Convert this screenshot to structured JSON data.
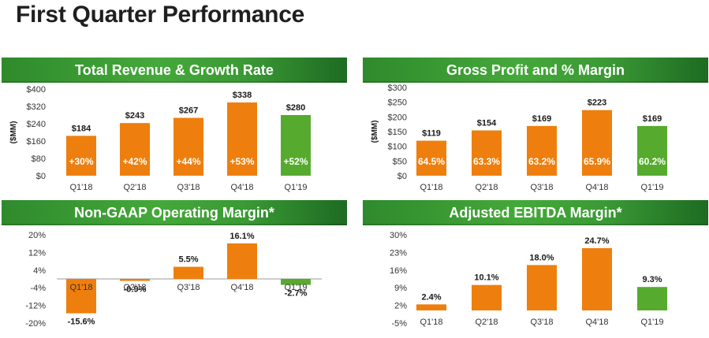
{
  "page_title": "First Quarter Performance",
  "colors": {
    "orange": "#ee7f0e",
    "green": "#56ab2f",
    "header": "#3f9e36"
  },
  "chart_data": [
    {
      "type": "bar",
      "title": "Total Revenue & Growth Rate",
      "ylabel": "($MM)",
      "categories": [
        "Q1'18",
        "Q2'18",
        "Q3'18",
        "Q4'18",
        "Q1'19"
      ],
      "values": [
        184,
        243,
        267,
        338,
        280
      ],
      "value_labels": [
        "$184",
        "$243",
        "$267",
        "$338",
        "$280"
      ],
      "inbar_labels": [
        "+30%",
        "+42%",
        "+44%",
        "+53%",
        "+52%"
      ],
      "yticks": [
        "$0",
        "$80",
        "$160",
        "$240",
        "$320",
        "$400"
      ],
      "ylim": [
        0,
        400
      ],
      "highlight_last": true
    },
    {
      "type": "bar",
      "title": "Gross Profit and % Margin",
      "ylabel": "($MM)",
      "categories": [
        "Q1'18",
        "Q2'18",
        "Q3'18",
        "Q4'18",
        "Q1'19"
      ],
      "values": [
        119,
        154,
        169,
        223,
        169
      ],
      "value_labels": [
        "$119",
        "$154",
        "$169",
        "$223",
        "$169"
      ],
      "inbar_labels": [
        "64.5%",
        "63.3%",
        "63.2%",
        "65.9%",
        "60.2%"
      ],
      "yticks": [
        "$0",
        "$50",
        "$100",
        "$150",
        "$200",
        "$250",
        "$300"
      ],
      "ylim": [
        0,
        300
      ],
      "highlight_last": true
    },
    {
      "type": "bar",
      "title": "Non-GAAP Operating Margin*",
      "ylabel": "",
      "categories": [
        "Q1'18",
        "Q2'18",
        "Q3'18",
        "Q4'18",
        "Q1'19"
      ],
      "values": [
        -15.6,
        -0.9,
        5.5,
        16.1,
        -2.7
      ],
      "value_labels": [
        "-15.6%",
        "-0.9%",
        "5.5%",
        "16.1%",
        "-2.7%"
      ],
      "inbar_labels": [],
      "yticks": [
        "-20%",
        "-12%",
        "-4%",
        "4%",
        "12%",
        "20%"
      ],
      "ylim": [
        -20,
        20
      ],
      "highlight_last": true
    },
    {
      "type": "bar",
      "title": "Adjusted EBITDA Margin*",
      "ylabel": "",
      "categories": [
        "Q1'18",
        "Q2'18",
        "Q3'18",
        "Q4'18",
        "Q1'19"
      ],
      "values": [
        2.4,
        10.1,
        18.0,
        24.7,
        9.3
      ],
      "value_labels": [
        "2.4%",
        "10.1%",
        "18.0%",
        "24.7%",
        "9.3%"
      ],
      "inbar_labels": [],
      "yticks": [
        "-5%",
        "2%",
        "9%",
        "16%",
        "23%",
        "30%"
      ],
      "ylim": [
        -5,
        30
      ],
      "highlight_last": true
    }
  ]
}
